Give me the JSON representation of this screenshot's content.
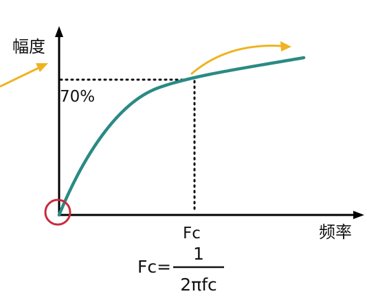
{
  "axes": {
    "y_label": "幅度",
    "x_label": "频率"
  },
  "annotations": {
    "level_label": "70%",
    "cutoff_label": "Fc"
  },
  "formula": {
    "lhs": "Fc=",
    "numerator": "1",
    "denominator": "2πfc"
  },
  "colors": {
    "axis": "#000000",
    "curve": "#2a8a84",
    "arrow": "#efb320",
    "origin_circle": "#c8283c",
    "guide": "#111111"
  }
}
